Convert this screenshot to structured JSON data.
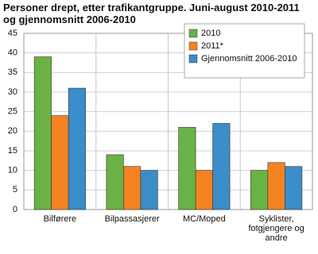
{
  "chart_data": {
    "type": "bar",
    "title": "Personer drept, etter trafikantgruppe. Juni-august 2010-2011 og gjennomsnitt 2006-2010",
    "categories": [
      "Bilførere",
      "Bilpassasjerer",
      "MC/Moped",
      "Syklister, fotgjengere og andre"
    ],
    "series": [
      {
        "name": "2010",
        "color": "#6ab245",
        "values": [
          39,
          14,
          21,
          10
        ]
      },
      {
        "name": "2011*",
        "color": "#f58220",
        "values": [
          24,
          11,
          10,
          12
        ]
      },
      {
        "name": "Gjennomsnitt 2006-2010",
        "color": "#3a8dc8",
        "values": [
          31,
          10,
          22,
          11
        ]
      }
    ],
    "ylim": [
      0,
      45
    ],
    "yticks": [
      0,
      5,
      10,
      15,
      20,
      25,
      30,
      35,
      40,
      45
    ],
    "grid": true,
    "legend": "top-right"
  }
}
